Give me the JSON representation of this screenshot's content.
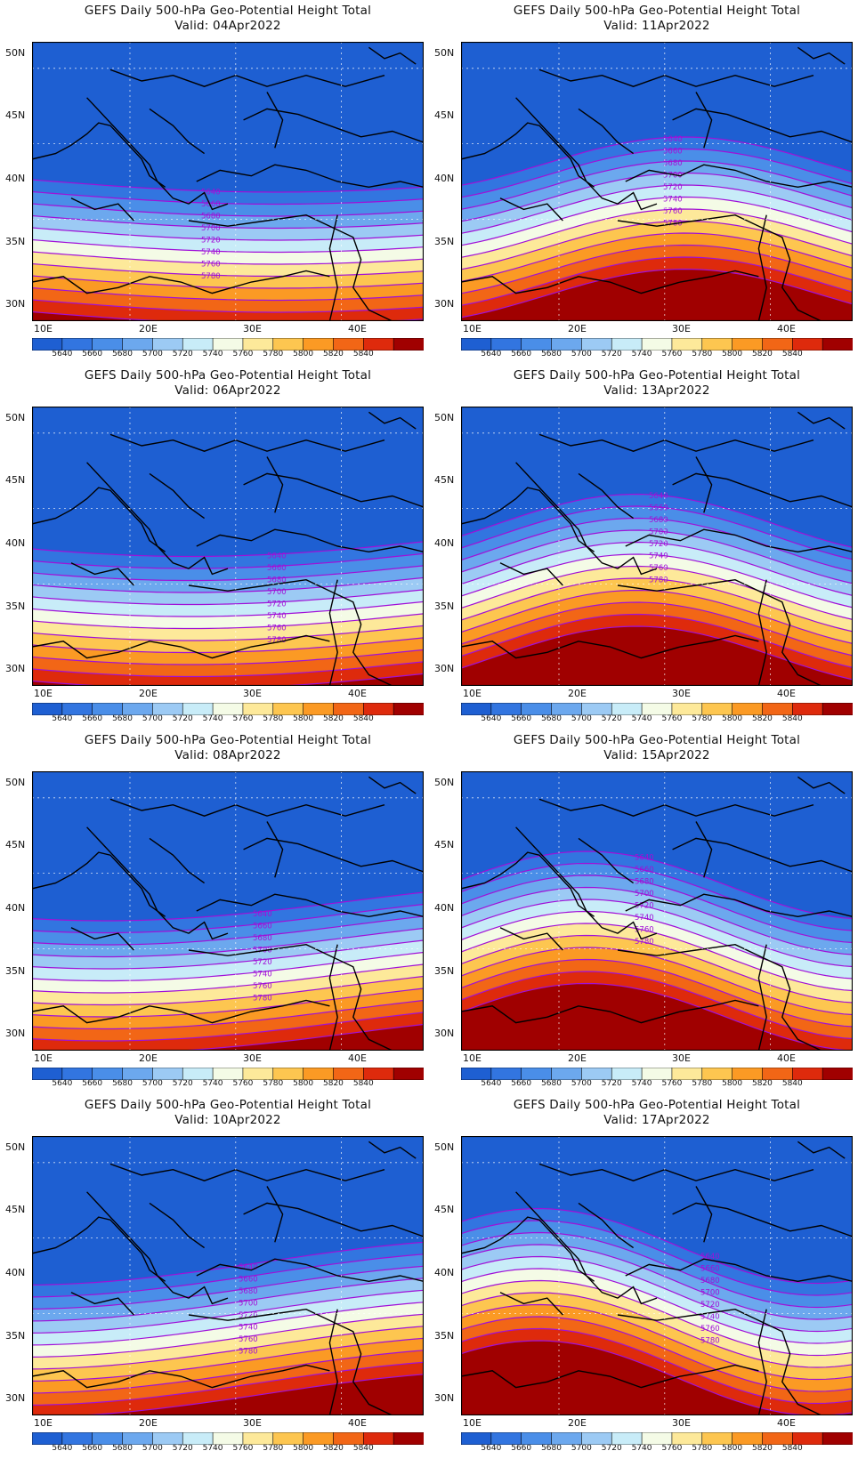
{
  "title": "GEFS Daily 500-hPa Geo-Potential Height Total",
  "panels": [
    {
      "id": "p1",
      "date": "Valid: 04Apr2022",
      "phase": 0.0
    },
    {
      "id": "p2",
      "date": "Valid: 11Apr2022",
      "phase": 1.0
    },
    {
      "id": "p3",
      "date": "Valid: 06Apr2022",
      "phase": 0.25
    },
    {
      "id": "p4",
      "date": "Valid: 13Apr2022",
      "phase": 1.25
    },
    {
      "id": "p5",
      "date": "Valid: 08Apr2022",
      "phase": 0.5
    },
    {
      "id": "p6",
      "date": "Valid: 15Apr2022",
      "phase": 1.5
    },
    {
      "id": "p7",
      "date": "Valid: 10Apr2022",
      "phase": 0.75
    },
    {
      "id": "p8",
      "date": "Valid: 17Apr2022",
      "phase": 1.75
    }
  ],
  "lat_labels": [
    "50N",
    "45N",
    "40N",
    "35N",
    "30N"
  ],
  "lon_labels": [
    "10E",
    "20E",
    "30E",
    "40E"
  ],
  "contour_levels": [
    "5640",
    "5660",
    "5680",
    "5700",
    "5720",
    "5740",
    "5760",
    "5780",
    "5800",
    "5820",
    "5840"
  ],
  "colorbar_colors": [
    "#1e5fd2",
    "#3275e0",
    "#4a8ee8",
    "#6ca8ee",
    "#9ccaf4",
    "#c8ecf8",
    "#f4fbe6",
    "#fde99a",
    "#fdc650",
    "#fb9a24",
    "#f26616",
    "#de2a0c",
    "#a00000"
  ],
  "contour_color": "#a010d8"
}
